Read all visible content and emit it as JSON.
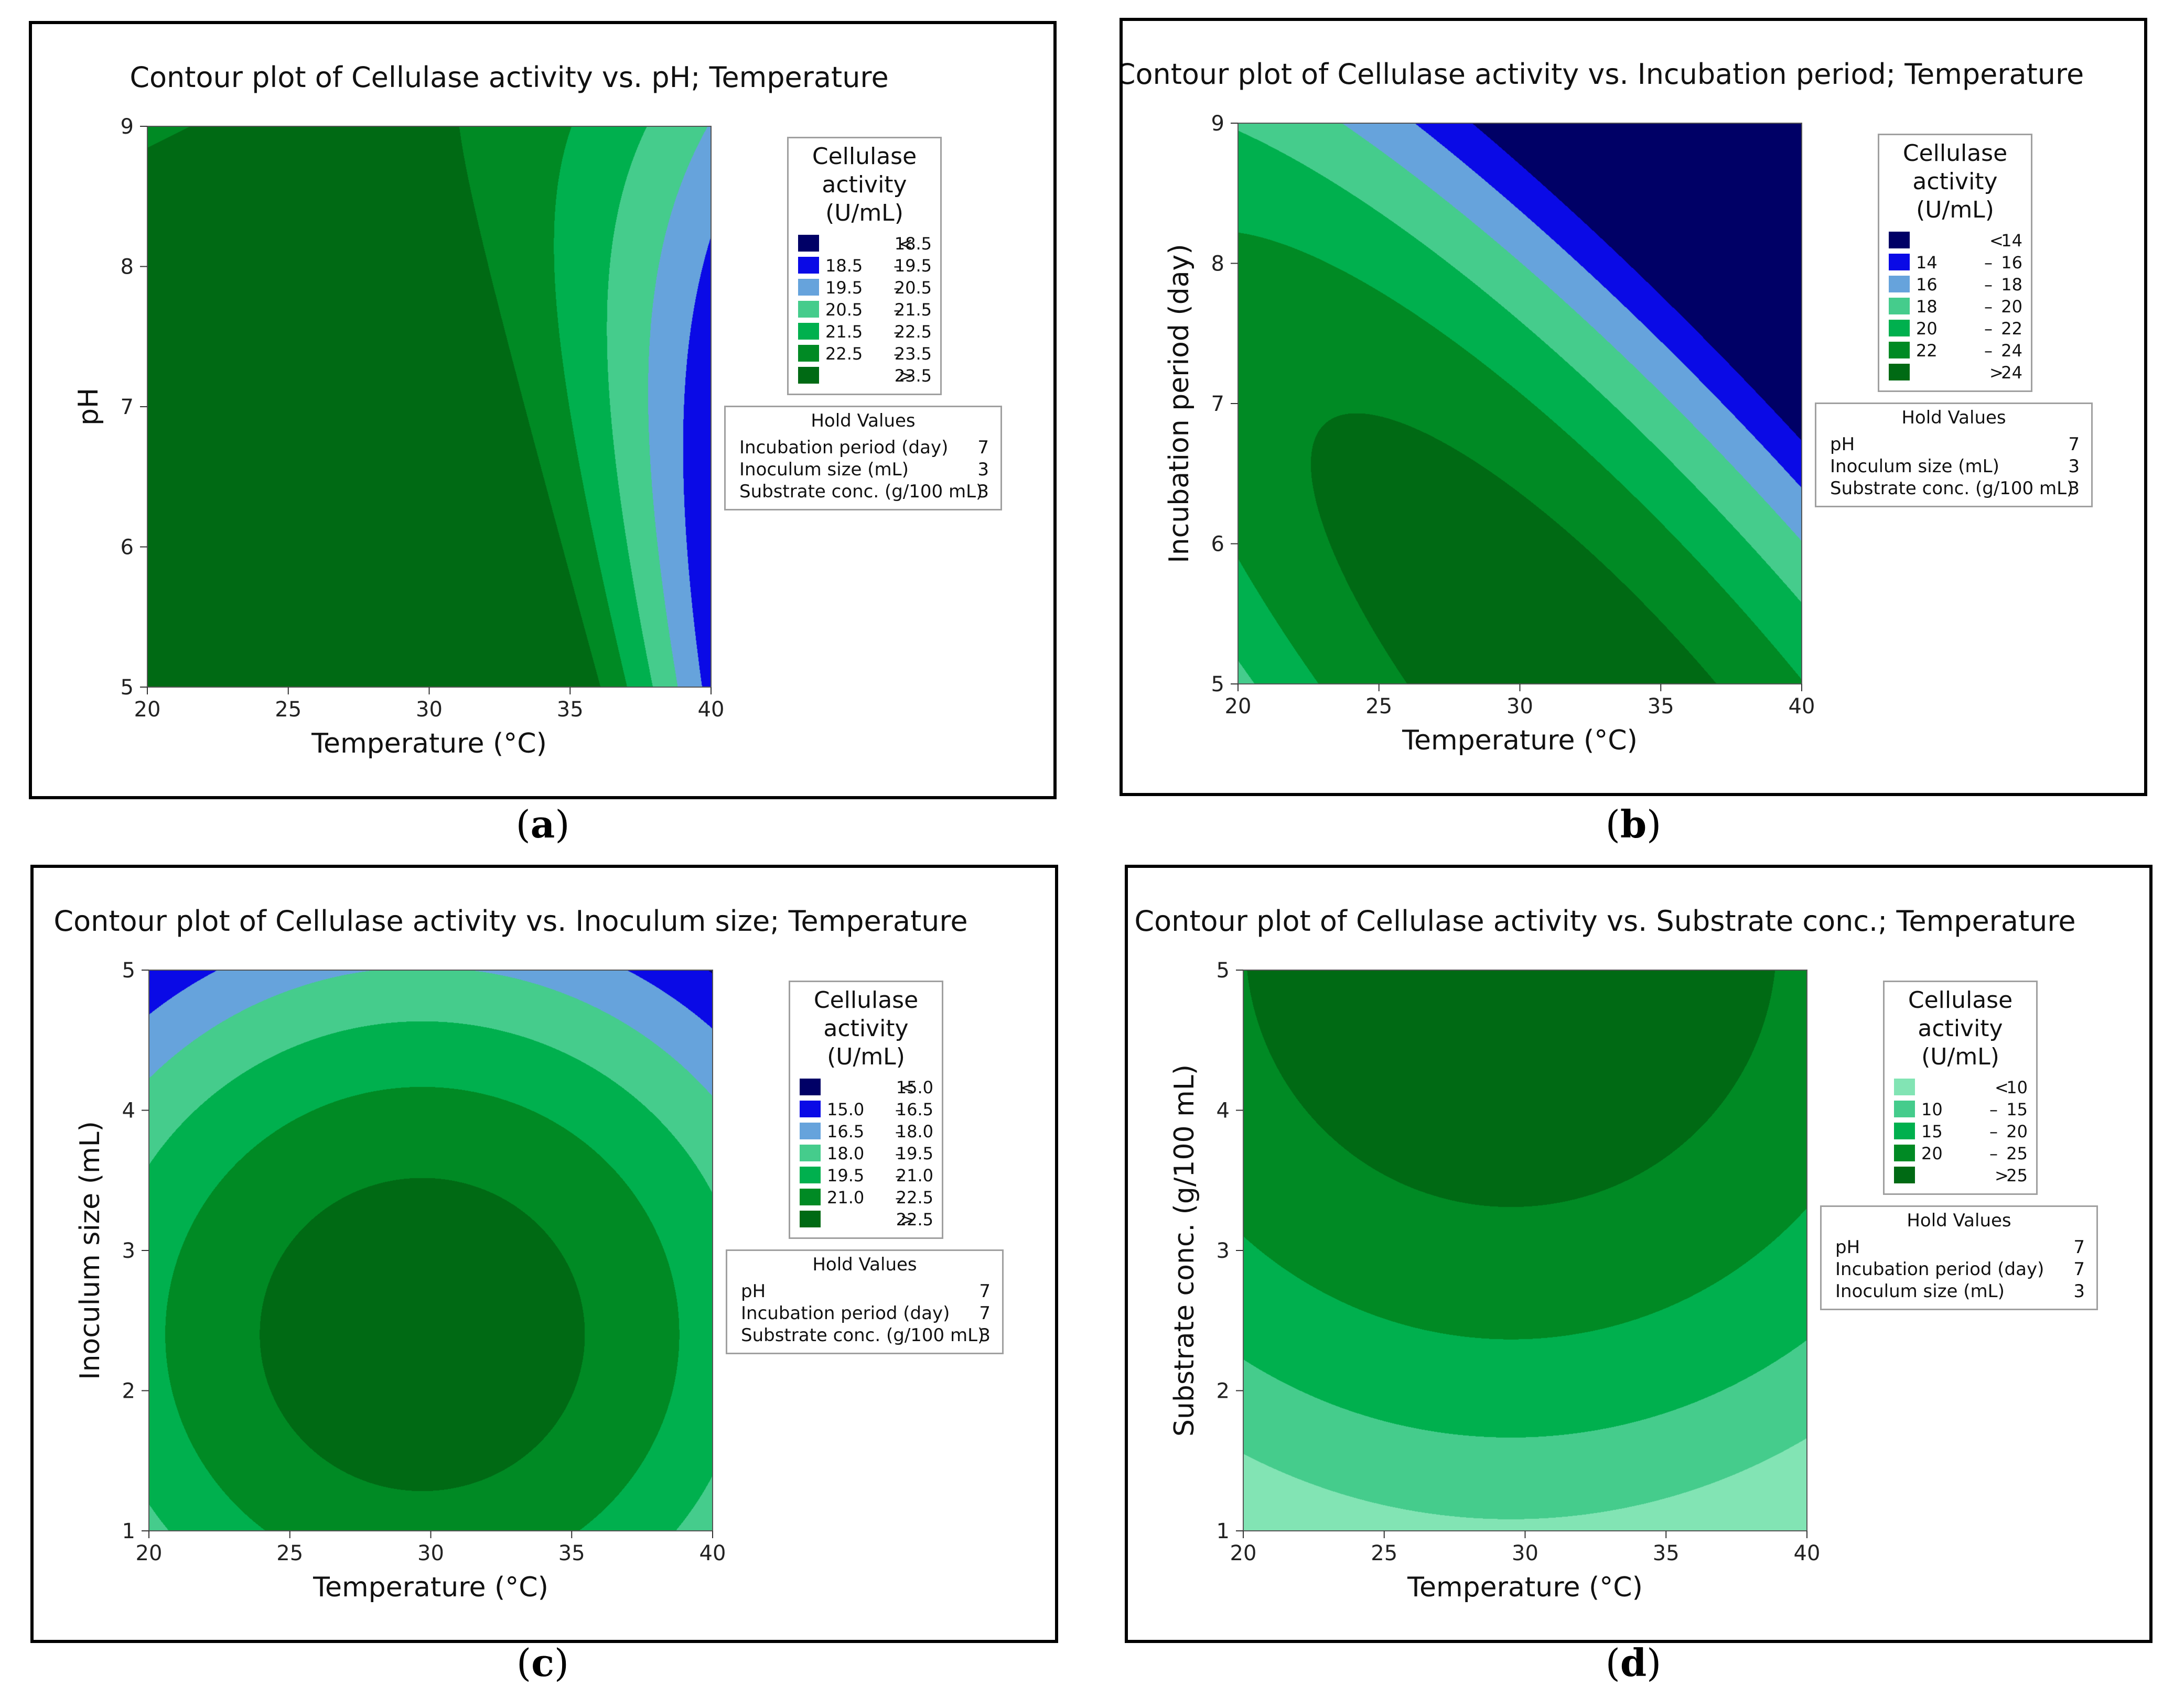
{
  "panels": [
    {
      "caption_letter": "a",
      "chart_data": {
        "type": "contour",
        "title": "Contour plot of Cellulase activity vs. pH; Temperature",
        "xlabel": "Temperature (°C)",
        "ylabel": "pH",
        "xlim": [
          20,
          40
        ],
        "ylim": [
          5,
          9
        ],
        "xticks": [
          "20",
          "25",
          "30",
          "35",
          "40"
        ],
        "yticks": [
          "5",
          "6",
          "7",
          "8",
          "9"
        ],
        "model": {
          "b0": 23.6,
          "x_center": 29.5,
          "y_center": 9.7,
          "ax": 0.0185,
          "ay": -0.27,
          "axy": -0.17
        },
        "legend": {
          "title": [
            "Cellulase",
            "activity",
            "(U/mL)"
          ],
          "levels": [
            {
              "lo": "<",
              "hi": "18.5",
              "color": "#000066"
            },
            {
              "lo": "18.5",
              "hi": "19.5",
              "color": "#0a0ae6"
            },
            {
              "lo": "19.5",
              "hi": "20.5",
              "color": "#66a3dc"
            },
            {
              "lo": "20.5",
              "hi": "21.5",
              "color": "#45cc8c"
            },
            {
              "lo": "21.5",
              "hi": "22.5",
              "color": "#00b04e"
            },
            {
              "lo": "22.5",
              "hi": "23.5",
              "color": "#008a24"
            },
            {
              "lo": ">",
              "hi": "23.5",
              "color": "#006a14"
            }
          ],
          "breaks": [
            18.5,
            19.5,
            20.5,
            21.5,
            22.5,
            23.5
          ]
        },
        "hold_values": {
          "title": "Hold Values",
          "rows": [
            {
              "label": "Incubation period (day)",
              "value": "7"
            },
            {
              "label": "Inoculum size (mL)",
              "value": "3"
            },
            {
              "label": "Substrate conc. (g/100 mL)",
              "value": "3"
            }
          ]
        }
      }
    },
    {
      "caption_letter": "b",
      "chart_data": {
        "type": "contour",
        "title": "Contour plot of Cellulase activity vs. Incubation period; Temperature",
        "xlabel": "Temperature (°C)",
        "ylabel": "Incubation period (day)",
        "xlim": [
          20,
          40
        ],
        "ylim": [
          5,
          9
        ],
        "xticks": [
          "20",
          "25",
          "30",
          "35",
          "40"
        ],
        "yticks": [
          "5",
          "6",
          "7",
          "8",
          "9"
        ],
        "model": {
          "b0": 25.4,
          "x_center": 33.0,
          "y_center": 4.6,
          "ax": 0.045,
          "ay": 0.9,
          "axy": 0.34
        },
        "legend": {
          "title": [
            "Cellulase",
            "activity",
            "(U/mL)"
          ],
          "levels": [
            {
              "lo": "<",
              "hi": "14",
              "color": "#000066"
            },
            {
              "lo": "14",
              "hi": "16",
              "color": "#0a0ae6"
            },
            {
              "lo": "16",
              "hi": "18",
              "color": "#66a3dc"
            },
            {
              "lo": "18",
              "hi": "20",
              "color": "#45cc8c"
            },
            {
              "lo": "20",
              "hi": "22",
              "color": "#00b04e"
            },
            {
              "lo": "22",
              "hi": "24",
              "color": "#008a24"
            },
            {
              "lo": ">",
              "hi": "24",
              "color": "#006a14"
            }
          ],
          "breaks": [
            14,
            16,
            18,
            20,
            22,
            24
          ]
        },
        "hold_values": {
          "title": "Hold Values",
          "rows": [
            {
              "label": "pH",
              "value": "7"
            },
            {
              "label": "Inoculum size (mL)",
              "value": "3"
            },
            {
              "label": "Substrate conc. (g/100 mL)",
              "value": "3"
            }
          ]
        }
      }
    },
    {
      "caption_letter": "c",
      "chart_data": {
        "type": "contour",
        "title": "Contour plot of Cellulase activity vs. Inoculum size; Temperature",
        "xlabel": "Temperature (°C)",
        "ylabel": "Inoculum size (mL)",
        "xlim": [
          20,
          40
        ],
        "ylim": [
          1,
          5
        ],
        "xticks": [
          "20",
          "25",
          "30",
          "35",
          "40"
        ],
        "yticks": [
          "1",
          "2",
          "3",
          "4",
          "5"
        ],
        "model": {
          "b0": 23.5,
          "x_center": 29.7,
          "y_center": 2.4,
          "ax": 0.03,
          "ay": 0.8,
          "axy": 0.0
        },
        "legend": {
          "title": [
            "Cellulase",
            "activity",
            "(U/mL)"
          ],
          "levels": [
            {
              "lo": "<",
              "hi": "15.0",
              "color": "#000066"
            },
            {
              "lo": "15.0",
              "hi": "16.5",
              "color": "#0a0ae6"
            },
            {
              "lo": "16.5",
              "hi": "18.0",
              "color": "#66a3dc"
            },
            {
              "lo": "18.0",
              "hi": "19.5",
              "color": "#45cc8c"
            },
            {
              "lo": "19.5",
              "hi": "21.0",
              "color": "#00b04e"
            },
            {
              "lo": "21.0",
              "hi": "22.5",
              "color": "#008a24"
            },
            {
              "lo": ">",
              "hi": "22.5",
              "color": "#006a14"
            }
          ],
          "breaks": [
            15.0,
            16.5,
            18.0,
            19.5,
            21.0,
            22.5
          ]
        },
        "hold_values": {
          "title": "Hold Values",
          "rows": [
            {
              "label": "pH",
              "value": "7"
            },
            {
              "label": "Incubation period (day)",
              "value": "7"
            },
            {
              "label": "Substrate conc. (g/100 mL)",
              "value": "3"
            }
          ]
        }
      }
    },
    {
      "caption_letter": "d",
      "chart_data": {
        "type": "contour",
        "title": "Contour plot of Cellulase activity vs. Substrate conc.; Temperature",
        "xlabel": "Temperature (°C)",
        "ylabel": "Substrate conc. (g/100 mL)",
        "xlim": [
          20,
          40
        ],
        "ylim": [
          1,
          5
        ],
        "xticks": [
          "20",
          "25",
          "30",
          "35",
          "40"
        ],
        "yticks": [
          "1",
          "2",
          "3",
          "4",
          "5"
        ],
        "model": {
          "b0": 29.0,
          "x_center": 29.5,
          "y_center": 5.2,
          "ax": 0.045,
          "ay": 1.12,
          "axy": 0.0
        },
        "legend": {
          "title": [
            "Cellulase",
            "activity",
            "(U/mL)"
          ],
          "levels": [
            {
              "lo": "<",
              "hi": "10",
              "color": "#82e4b4"
            },
            {
              "lo": "10",
              "hi": "15",
              "color": "#45cc8c"
            },
            {
              "lo": "15",
              "hi": "20",
              "color": "#00b04e"
            },
            {
              "lo": "20",
              "hi": "25",
              "color": "#008a24"
            },
            {
              "lo": ">",
              "hi": "25",
              "color": "#006a14"
            }
          ],
          "breaks": [
            10,
            15,
            20,
            25
          ]
        },
        "hold_values": {
          "title": "Hold Values",
          "rows": [
            {
              "label": "pH",
              "value": "7"
            },
            {
              "label": "Incubation period (day)",
              "value": "7"
            },
            {
              "label": "Inoculum size (mL)",
              "value": "3"
            }
          ]
        }
      }
    }
  ]
}
